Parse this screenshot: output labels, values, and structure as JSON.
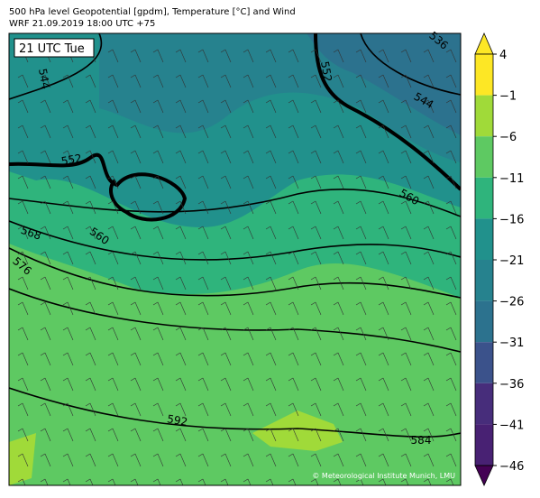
{
  "header": {
    "title": "500 hPa level Geopotential [gpdm], Temperature [°C] and Wind",
    "subtitle": "WRF 21.09.2019 18:00 UTC +75"
  },
  "map": {
    "time_label": "21 UTC Tue",
    "contour_labels": [
      "536",
      "552",
      "544",
      "544",
      "552",
      "560",
      "568",
      "560",
      "576",
      "592",
      "584"
    ],
    "credit": "© Meteorological Institute Munich, LMU"
  },
  "colorbar": {
    "ticks": [
      4,
      {
        "value": -1,
        "label": "−1"
      },
      {
        "value": -6,
        "label": "−6"
      },
      {
        "value": -11,
        "label": "−11"
      },
      {
        "value": -16,
        "label": "−16"
      },
      {
        "value": -21,
        "label": "−21"
      },
      {
        "value": -26,
        "label": "−26"
      },
      {
        "value": -31,
        "label": "−31"
      },
      {
        "value": -36,
        "label": "−36"
      },
      {
        "value": -41,
        "label": "−41"
      },
      {
        "value": -46,
        "label": "−46"
      }
    ],
    "colors": [
      "#fde725",
      "#a0da39",
      "#5ec962",
      "#2fb47c",
      "#21918c",
      "#26828e",
      "#2c728e",
      "#3b528b",
      "#472d7b",
      "#482173",
      "#440154"
    ]
  }
}
